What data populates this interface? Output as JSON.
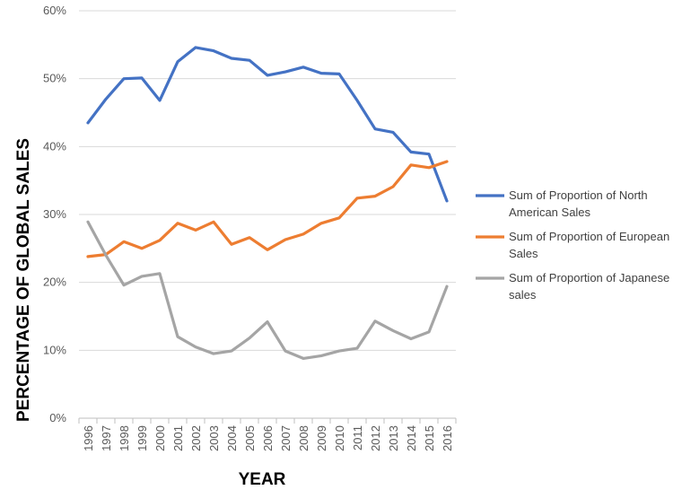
{
  "chart_data": {
    "type": "line",
    "title": "",
    "xlabel": "YEAR",
    "ylabel": "PERCENTAGE OF GLOBAL SALES",
    "ylim": [
      0,
      60
    ],
    "yticks": [
      "0%",
      "10%",
      "20%",
      "30%",
      "40%",
      "50%",
      "60%"
    ],
    "grid": "horizontal",
    "legend_position": "right",
    "categories": [
      "1996",
      "1997",
      "1998",
      "1999",
      "2000",
      "2001",
      "2002",
      "2003",
      "2004",
      "2005",
      "2006",
      "2007",
      "2008",
      "2009",
      "2010",
      "2011",
      "2012",
      "2013",
      "2014",
      "2015",
      "2016"
    ],
    "series": [
      {
        "name": "Sum of Proportion of North American Sales",
        "color": "#4472C4",
        "values": [
          43.5,
          47.0,
          50.0,
          50.1,
          46.8,
          52.5,
          54.6,
          54.1,
          53.0,
          52.7,
          50.5,
          51.0,
          51.7,
          50.8,
          50.7,
          46.8,
          42.6,
          42.1,
          39.2,
          38.9,
          32.0
        ]
      },
      {
        "name": "Sum of Proportion of European Sales",
        "color": "#ED7D31",
        "values": [
          23.8,
          24.1,
          26.0,
          25.0,
          26.2,
          28.7,
          27.7,
          28.9,
          25.6,
          26.6,
          24.8,
          26.3,
          27.1,
          28.7,
          29.5,
          32.4,
          32.7,
          34.1,
          37.3,
          36.9,
          37.8
        ]
      },
      {
        "name": "Sum of Proportion of Japanese sales",
        "color": "#A5A5A5",
        "values": [
          28.9,
          24.0,
          19.6,
          20.9,
          21.3,
          12.0,
          10.5,
          9.5,
          9.9,
          11.8,
          14.2,
          9.9,
          8.8,
          9.2,
          9.9,
          10.3,
          14.3,
          12.9,
          11.7,
          12.7,
          19.4
        ]
      }
    ]
  }
}
